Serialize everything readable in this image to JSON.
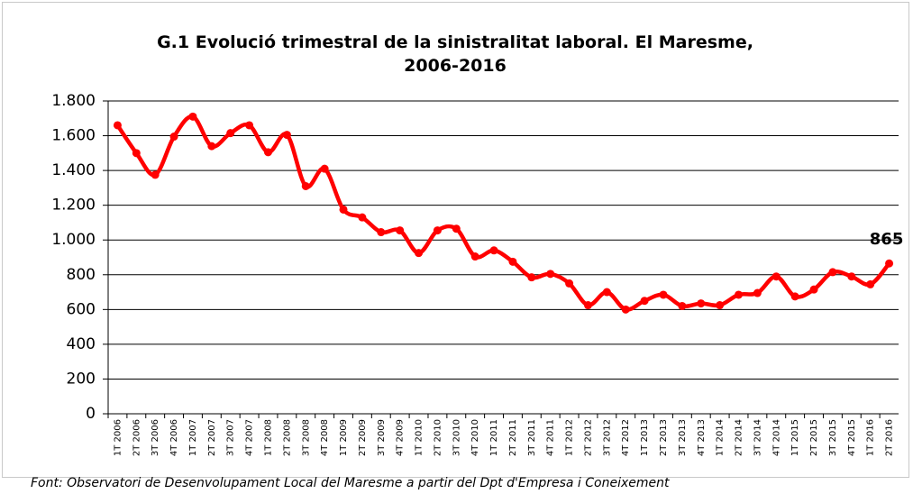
{
  "chart_data": {
    "type": "line",
    "title": "G.1 Evolució trimestral de la sinistralitat laboral. El Maresme, 2006-2016",
    "source": "Font: Observatori de Desenvolupament Local del Maresme a partir del Dpt d'Empresa i Coneixement",
    "categories": [
      "1T 2006",
      "2T 2006",
      "3T 2006",
      "4T 2006",
      "1T 2007",
      "2T 2007",
      "3T 2007",
      "4T 2007",
      "1T 2008",
      "2T 2008",
      "3T 2008",
      "4T 2008",
      "1T 2009",
      "2T 2009",
      "3T 2009",
      "4T 2009",
      "1T 2010",
      "2T 2010",
      "3T 2010",
      "4T 2010",
      "1T 2011",
      "2T 2011",
      "3T 2011",
      "4T 2011",
      "1T 2012",
      "2T 2012",
      "3T 2012",
      "4T 2012",
      "1T 2013",
      "2T 2013",
      "3T 2013",
      "4T 2013",
      "1T 2014",
      "2T 2014",
      "3T 2014",
      "4T 2014",
      "1T 2015",
      "2T 2015",
      "3T 2015",
      "4T 2015",
      "1T 2016",
      "2T 2016"
    ],
    "series": [
      {
        "color": "#ff0000",
        "values": [
          1660,
          1500,
          1375,
          1595,
          1710,
          1540,
          1615,
          1660,
          1505,
          1605,
          1310,
          1410,
          1175,
          1130,
          1045,
          1055,
          925,
          1055,
          1065,
          905,
          940,
          875,
          785,
          805,
          750,
          625,
          700,
          600,
          650,
          685,
          620,
          635,
          625,
          685,
          695,
          790,
          675,
          715,
          815,
          790,
          745,
          865
        ]
      }
    ],
    "ylim": [
      0,
      1800
    ],
    "yticks": [
      0,
      200,
      400,
      600,
      800,
      {
        "value": 1000,
        "label": "1.000"
      },
      {
        "value": 1200,
        "label": "1.200"
      },
      {
        "value": 1400,
        "label": "1.400"
      },
      {
        "value": 1600,
        "label": "1.600"
      },
      {
        "value": 1800,
        "label": "1.800"
      }
    ],
    "grid": true
  }
}
